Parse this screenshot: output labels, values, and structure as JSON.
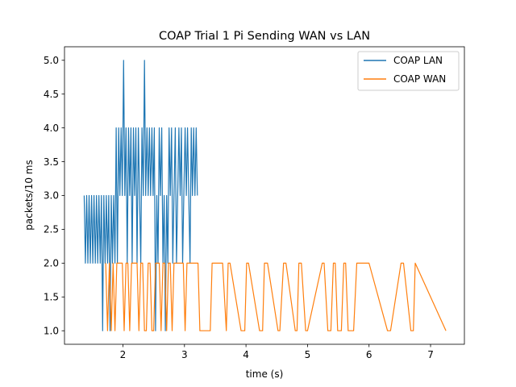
{
  "chart_data": {
    "type": "line",
    "title": "COAP Trial 1 Pi Sending WAN vs LAN",
    "xlabel": "time (s)",
    "ylabel": "packets/10 ms",
    "xlim": [
      1.05,
      7.55
    ],
    "ylim": [
      0.8,
      5.2
    ],
    "xticks": [
      2,
      3,
      4,
      5,
      6,
      7
    ],
    "yticks": [
      1.0,
      1.5,
      2.0,
      2.5,
      3.0,
      3.5,
      4.0,
      4.5,
      5.0
    ],
    "xtick_labels": [
      "2",
      "3",
      "4",
      "5",
      "6",
      "7"
    ],
    "ytick_labels": [
      "1.0",
      "1.5",
      "2.0",
      "2.5",
      "3.0",
      "3.5",
      "4.0",
      "4.5",
      "5.0"
    ],
    "grid": false,
    "legend_position": "top-right",
    "series": [
      {
        "name": "COAP LAN",
        "color": "#1f77b4",
        "x": [
          1.37,
          1.39,
          1.41,
          1.43,
          1.45,
          1.47,
          1.49,
          1.51,
          1.53,
          1.55,
          1.57,
          1.59,
          1.61,
          1.63,
          1.65,
          1.67,
          1.69,
          1.71,
          1.73,
          1.75,
          1.77,
          1.79,
          1.81,
          1.83,
          1.85,
          1.87,
          1.89,
          1.91,
          1.93,
          1.95,
          1.97,
          1.99,
          2.01,
          2.03,
          2.05,
          2.07,
          2.09,
          2.11,
          2.13,
          2.15,
          2.17,
          2.19,
          2.21,
          2.23,
          2.25,
          2.27,
          2.29,
          2.31,
          2.33,
          2.35,
          2.37,
          2.39,
          2.41,
          2.43,
          2.45,
          2.47,
          2.49,
          2.51,
          2.53,
          2.55,
          2.57,
          2.59,
          2.61,
          2.63,
          2.65,
          2.67,
          2.69,
          2.71,
          2.73,
          2.75,
          2.77,
          2.79,
          2.81,
          2.83,
          2.85,
          2.87,
          2.89,
          2.91,
          2.93,
          2.95,
          2.97,
          2.99,
          3.01,
          3.03,
          3.05,
          3.07,
          3.09,
          3.11,
          3.13,
          3.15,
          3.17,
          3.19,
          3.21
        ],
        "y": [
          3,
          2,
          3,
          2,
          3,
          2,
          3,
          2,
          3,
          2,
          3,
          2,
          3,
          2,
          3,
          1,
          3,
          2,
          3,
          2,
          3,
          1,
          3,
          2,
          3,
          2,
          4,
          2,
          4,
          3,
          4,
          3,
          5,
          3,
          4,
          2,
          4,
          3,
          4,
          2,
          4,
          3,
          4,
          2,
          4,
          3,
          2,
          4,
          3,
          5,
          3,
          4,
          3,
          4,
          3,
          4,
          3,
          4,
          1,
          3,
          2,
          4,
          3,
          4,
          2,
          3,
          1,
          3,
          2,
          4,
          3,
          4,
          2,
          3,
          4,
          2,
          3,
          4,
          3,
          4,
          2,
          3,
          4,
          3,
          4,
          3,
          2,
          4,
          3,
          4,
          3,
          4,
          3
        ]
      },
      {
        "name": "COAP WAN",
        "color": "#ff7f0e",
        "x": [
          1.72,
          1.75,
          1.78,
          1.81,
          1.84,
          1.87,
          1.9,
          1.93,
          1.96,
          1.99,
          2.02,
          2.05,
          2.08,
          2.11,
          2.14,
          2.17,
          2.2,
          2.23,
          2.26,
          2.29,
          2.32,
          2.35,
          2.38,
          2.41,
          2.44,
          2.47,
          2.5,
          2.53,
          2.56,
          2.59,
          2.62,
          2.65,
          2.68,
          2.71,
          2.74,
          2.77,
          2.8,
          2.83,
          2.86,
          2.89,
          2.92,
          2.95,
          2.98,
          3.01,
          3.04,
          3.07,
          3.1,
          3.13,
          3.16,
          3.19,
          3.22,
          3.25,
          3.42,
          3.45,
          3.62,
          3.68,
          3.71,
          3.74,
          3.92,
          3.98,
          4.01,
          4.04,
          4.22,
          4.27,
          4.3,
          4.35,
          4.52,
          4.55,
          4.61,
          4.65,
          4.8,
          4.83,
          4.86,
          4.9,
          4.97,
          5.0,
          5.24,
          5.27,
          5.33,
          5.38,
          5.42,
          5.45,
          5.49,
          5.55,
          5.59,
          5.62,
          5.66,
          5.75,
          5.8,
          6.0,
          6.3,
          6.35,
          6.52,
          6.56,
          6.68,
          6.72,
          6.75,
          7.25
        ],
        "y": [
          2,
          1,
          2,
          1,
          2,
          1,
          2,
          2,
          2,
          2,
          1,
          2,
          2,
          1,
          2,
          2,
          2,
          2,
          1,
          2,
          2,
          1,
          1,
          2,
          2,
          1,
          1,
          2,
          2,
          2,
          1,
          2,
          2,
          1,
          2,
          2,
          1,
          2,
          2,
          2,
          2,
          2,
          2,
          1,
          2,
          2,
          2,
          2,
          2,
          2,
          2,
          1,
          1,
          2,
          2,
          1,
          2,
          2,
          1,
          1,
          2,
          2,
          1,
          1,
          2,
          2,
          1,
          1,
          2,
          2,
          1,
          1,
          2,
          2,
          1,
          1,
          2,
          2,
          1,
          1,
          2,
          2,
          1,
          1,
          2,
          2,
          1,
          1,
          2,
          2,
          1,
          1,
          2,
          2,
          1,
          1,
          2,
          1
        ]
      }
    ]
  }
}
